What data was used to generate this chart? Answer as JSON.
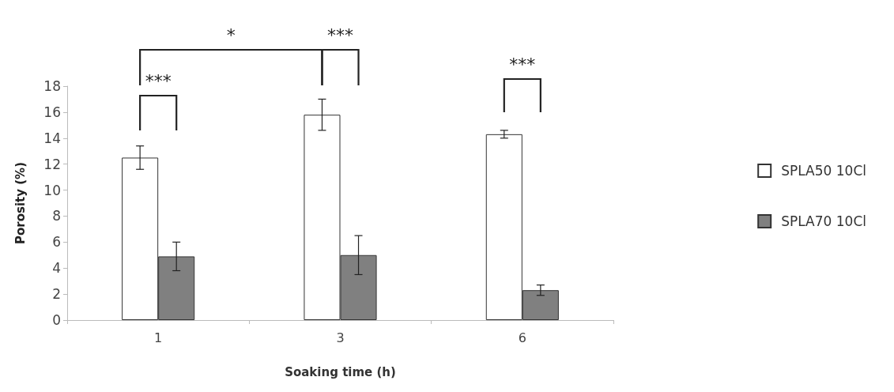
{
  "chart_data": {
    "type": "bar",
    "xlabel": "Soaking time (h)",
    "ylabel": "Porosity (%)",
    "categories": [
      "1",
      "3",
      "6"
    ],
    "series": [
      {
        "name": "SPLA50 10Cl",
        "color": "#ffffff",
        "values": [
          12.5,
          15.8,
          14.3
        ],
        "errors": [
          0.9,
          1.2,
          0.3
        ]
      },
      {
        "name": "SPLA70 10Cl",
        "color": "#808080",
        "values": [
          4.9,
          5.0,
          2.3
        ],
        "errors": [
          1.1,
          1.5,
          0.4
        ]
      }
    ],
    "ylim": [
      0,
      18
    ],
    "yticks": [
      0,
      2,
      4,
      6,
      8,
      10,
      12,
      14,
      16,
      18
    ],
    "grid": false,
    "legend": "right",
    "annotations": [
      "*",
      "***",
      "***",
      "***"
    ]
  }
}
